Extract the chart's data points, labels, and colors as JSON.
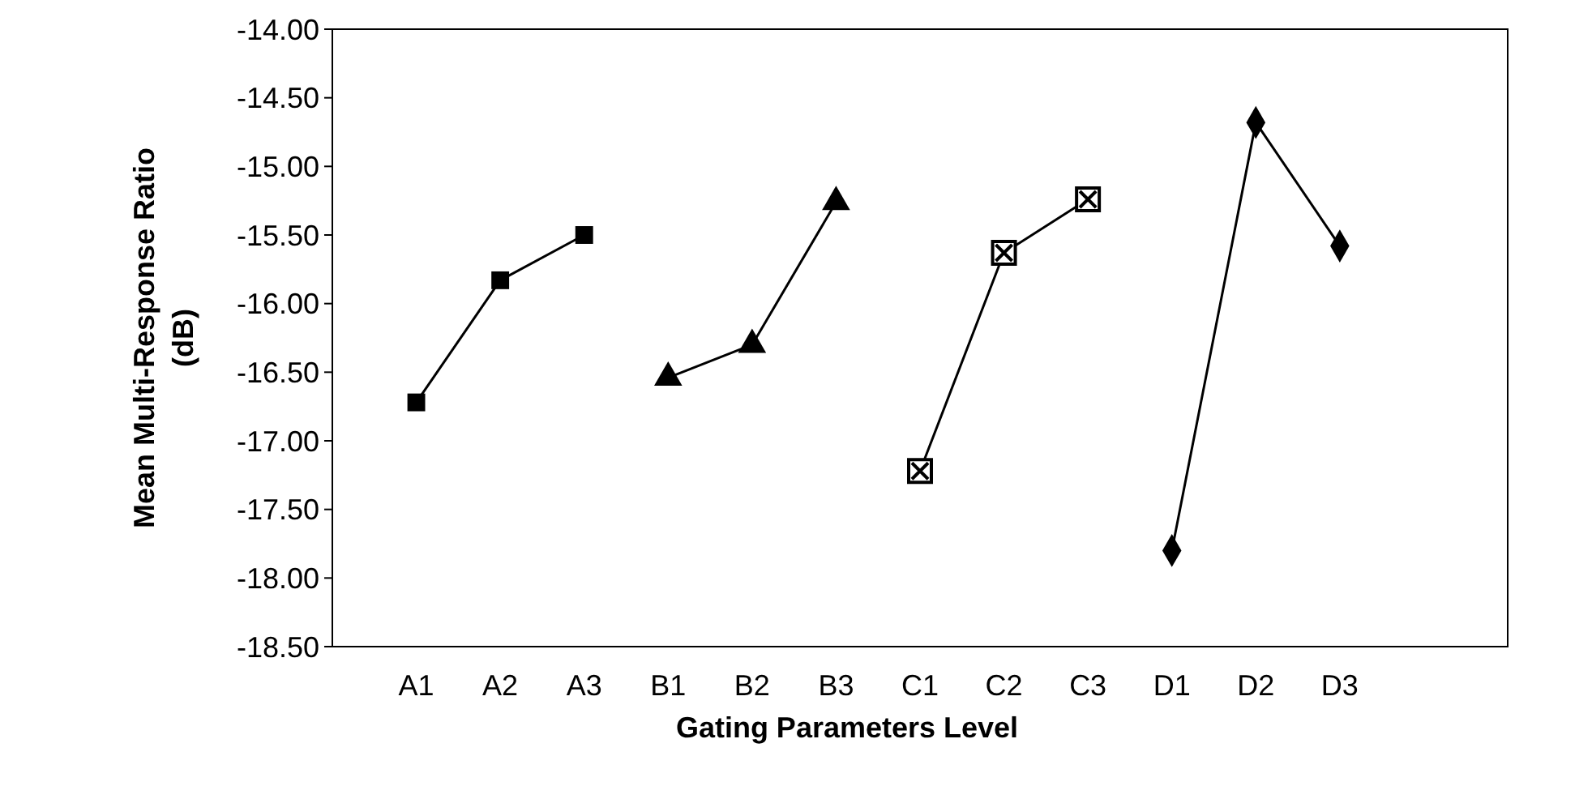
{
  "chart_data": {
    "type": "line",
    "xlabel": "Gating Parameters Level",
    "ylabel": "Mean Multi-Response Ratio (dB)",
    "categories": [
      "A1",
      "A2",
      "A3",
      "B1",
      "B2",
      "B3",
      "C1",
      "C2",
      "C3",
      "D1",
      "D2",
      "D3"
    ],
    "ylim": [
      -18.5,
      -14
    ],
    "yticks": [
      {
        "value": -18.5,
        "label": "-18.50"
      },
      {
        "value": -18,
        "label": "-18.00"
      },
      {
        "value": -17.5,
        "label": "-17.50"
      },
      {
        "value": -17,
        "label": "-17.00"
      },
      {
        "value": -16.5,
        "label": "-16.50"
      },
      {
        "value": -16,
        "label": "-16.00"
      },
      {
        "value": -15.5,
        "label": "-15.50"
      },
      {
        "value": -15,
        "label": "-15.00"
      },
      {
        "value": -14.5,
        "label": "-14.50"
      },
      {
        "value": -14,
        "label": "-14.00"
      }
    ],
    "series": [
      {
        "color": "#000000",
        "marker": "square",
        "values": [
          -16.72,
          -15.83,
          -15.5,
          null,
          null,
          null,
          null,
          null,
          null,
          null,
          null,
          null
        ]
      },
      {
        "color": "#000000",
        "marker": "triangle",
        "values": [
          null,
          null,
          null,
          -16.54,
          -16.3,
          -15.26,
          null,
          null,
          null,
          null,
          null,
          null
        ]
      },
      {
        "color": "#000000",
        "marker": "cross",
        "values": [
          null,
          null,
          null,
          null,
          null,
          null,
          -17.22,
          -15.63,
          -15.24,
          null,
          null,
          null
        ]
      },
      {
        "color": "#000000",
        "marker": "diamond",
        "values": [
          null,
          null,
          null,
          null,
          null,
          null,
          null,
          null,
          null,
          -17.8,
          -14.68,
          -15.58
        ]
      }
    ],
    "line_style": "solid"
  }
}
